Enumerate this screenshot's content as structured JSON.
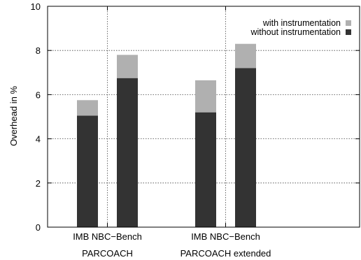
{
  "chart_data": {
    "type": "bar",
    "stacked": true,
    "ylabel": "Overhead in %",
    "ylim": [
      0,
      10
    ],
    "yticks": [
      0,
      2,
      4,
      6,
      8,
      10
    ],
    "grid": true,
    "legend_position": "top-right",
    "groups": [
      {
        "label": "PARCOACH",
        "categories": [
          "IMB",
          "NBC−Bench"
        ]
      },
      {
        "label": "PARCOACH extended",
        "categories": [
          "IMB",
          "NBC−Bench"
        ]
      }
    ],
    "series": [
      {
        "name": "without instrumentation",
        "color": "#333333",
        "values": [
          5.05,
          6.75,
          5.2,
          7.2
        ]
      },
      {
        "name": "with instrumentation",
        "color": "#b0b0b0",
        "values": [
          0.7,
          1.05,
          1.45,
          1.1
        ]
      }
    ]
  }
}
